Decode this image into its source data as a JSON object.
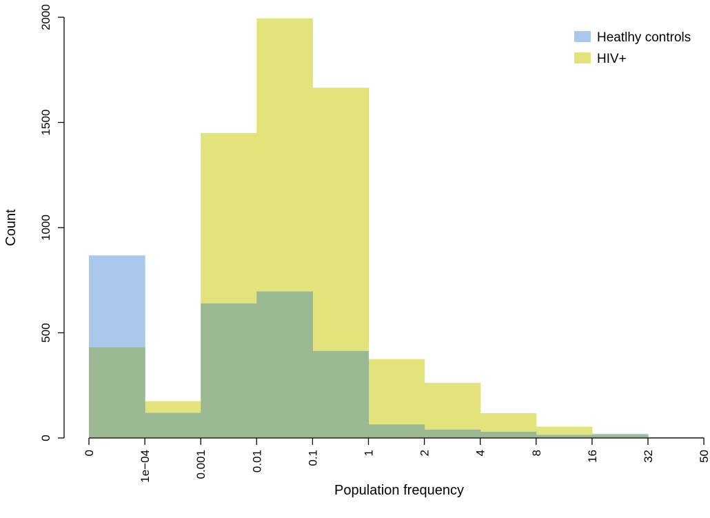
{
  "chart_data": {
    "type": "bar",
    "xlabel": "Population frequency",
    "ylabel": "Count",
    "bin_edges": [
      "0",
      "1e−04",
      "0.001",
      "0.01",
      "0.1",
      "1",
      "2",
      "4",
      "8",
      "16",
      "32",
      "50"
    ],
    "ylim": [
      0,
      2000
    ],
    "yticks": [
      0,
      500,
      1000,
      1500,
      2000
    ],
    "series": [
      {
        "name": "Heatlhy controls",
        "color": "#a9c8ec",
        "values": [
          868,
          120,
          640,
          697,
          414,
          65,
          40,
          30,
          15,
          20,
          3
        ]
      },
      {
        "name": "HIV+",
        "color": "#e2e37a",
        "values": [
          432,
          175,
          1450,
          1995,
          1665,
          375,
          262,
          118,
          54,
          15,
          5
        ]
      }
    ],
    "overlap_color": "#9ab892",
    "legend_position": "top-right",
    "grid": false
  }
}
